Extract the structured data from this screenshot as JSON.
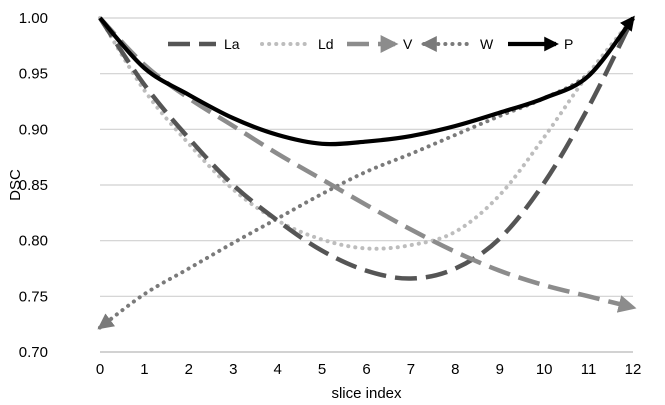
{
  "chart_data": {
    "type": "line",
    "x": [
      0,
      1,
      2,
      3,
      4,
      5,
      6,
      7,
      8,
      9,
      10,
      11,
      12
    ],
    "xlabel": "slice index",
    "ylabel": "DSC",
    "xlim": [
      0,
      12
    ],
    "ylim": [
      0.7,
      1.0
    ],
    "x_ticks": [
      "0",
      "1",
      "2",
      "3",
      "4",
      "5",
      "6",
      "7",
      "8",
      "9",
      "10",
      "11",
      "12"
    ],
    "y_ticks": [
      "0.70",
      "0.75",
      "0.80",
      "0.85",
      "0.90",
      "0.95",
      "1.00"
    ],
    "grid": "horizontal",
    "legend_position": "top",
    "series": [
      {
        "name": "La",
        "color": "#555555",
        "dash": "long-dash",
        "arrows": "none",
        "values": [
          1.0,
          0.94,
          0.892,
          0.85,
          0.818,
          0.791,
          0.773,
          0.766,
          0.775,
          0.802,
          0.852,
          0.92,
          1.0
        ]
      },
      {
        "name": "Ld",
        "color": "#bdbdbd",
        "dash": "dotted",
        "arrows": "none",
        "values": [
          1.0,
          0.935,
          0.887,
          0.846,
          0.818,
          0.801,
          0.793,
          0.796,
          0.808,
          0.841,
          0.893,
          0.95,
          1.0
        ]
      },
      {
        "name": "V",
        "color": "#8c8c8c",
        "dash": "long-dash",
        "arrows": "end",
        "values": [
          1.0,
          0.958,
          0.928,
          0.903,
          0.878,
          0.855,
          0.832,
          0.81,
          0.79,
          0.773,
          0.76,
          0.75,
          0.74
        ]
      },
      {
        "name": "W",
        "color": "#7a7a7a",
        "dash": "dotted",
        "arrows": "start",
        "values": [
          0.722,
          0.752,
          0.775,
          0.798,
          0.82,
          0.842,
          0.862,
          0.878,
          0.895,
          0.912,
          0.928,
          0.95,
          1.0
        ]
      },
      {
        "name": "P",
        "color": "#000000",
        "dash": "solid",
        "arrows": "end",
        "values": [
          1.0,
          0.955,
          0.931,
          0.91,
          0.895,
          0.887,
          0.889,
          0.894,
          0.903,
          0.915,
          0.928,
          0.948,
          1.0
        ]
      }
    ]
  }
}
